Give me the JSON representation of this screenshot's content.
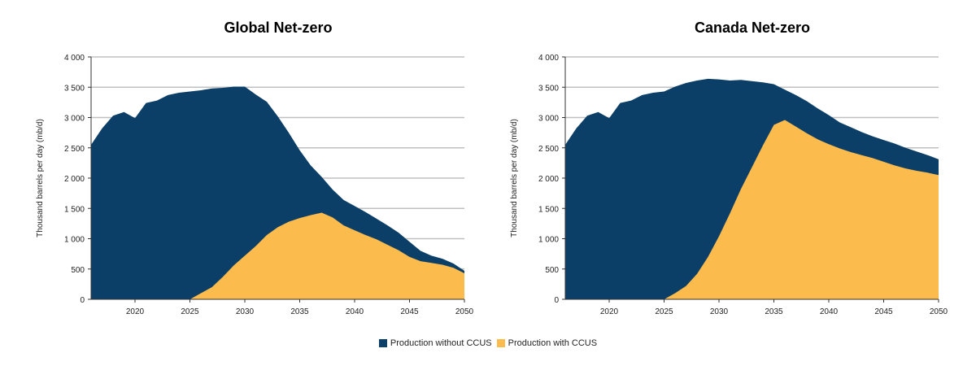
{
  "colors": {
    "without": "#0b3f68",
    "with": "#fcbb4d",
    "grid": "#c0c0c0",
    "axis": "#333333"
  },
  "legend": [
    {
      "label": "Production without CCUS",
      "color": "#0b3f68"
    },
    {
      "label": "Production with CCUS",
      "color": "#fcbb4d"
    }
  ],
  "chart_data": [
    {
      "type": "area",
      "title": "Global Net-zero",
      "ylabel": "Thousand barrels per day (mb/d)",
      "xlabel": "",
      "xlim": [
        2016,
        2050
      ],
      "ylim": [
        0,
        4000
      ],
      "x_ticks": [
        2020,
        2025,
        2030,
        2035,
        2040,
        2045,
        2050
      ],
      "x_tick_labels": [
        "2020",
        "2025",
        "2030",
        "2035",
        "2040",
        "2045",
        "2050"
      ],
      "y_ticks": [
        0,
        500,
        1000,
        1500,
        2000,
        2500,
        3000,
        3500,
        4000
      ],
      "y_tick_labels": [
        "0",
        "500",
        "1 000",
        "1 500",
        "2 000",
        "2 500",
        "3 000",
        "3 500",
        "4 000"
      ],
      "grid": true,
      "series": [
        {
          "name": "Production without CCUS",
          "x": [
            2016,
            2017,
            2018,
            2019,
            2020,
            2021,
            2022,
            2023,
            2024,
            2025,
            2026,
            2027,
            2028,
            2029,
            2030,
            2031,
            2032,
            2033,
            2034,
            2035,
            2036,
            2037,
            2038,
            2039,
            2040,
            2041,
            2042,
            2043,
            2044,
            2045,
            2046,
            2047,
            2048,
            2049,
            2050
          ],
          "values": [
            2550,
            2820,
            3030,
            3090,
            2990,
            3240,
            3280,
            3370,
            3410,
            3430,
            3450,
            3480,
            3490,
            3510,
            3510,
            3380,
            3260,
            3020,
            2750,
            2460,
            2210,
            2020,
            1810,
            1640,
            1540,
            1440,
            1330,
            1220,
            1100,
            950,
            800,
            720,
            670,
            590,
            470
          ]
        },
        {
          "name": "Production with CCUS",
          "x": [
            2016,
            2017,
            2018,
            2019,
            2020,
            2021,
            2022,
            2023,
            2024,
            2025,
            2026,
            2027,
            2028,
            2029,
            2030,
            2031,
            2032,
            2033,
            2034,
            2035,
            2036,
            2037,
            2038,
            2039,
            2040,
            2041,
            2042,
            2043,
            2044,
            2045,
            2046,
            2047,
            2048,
            2049,
            2050
          ],
          "values": [
            0,
            0,
            0,
            0,
            0,
            0,
            0,
            0,
            0,
            0,
            100,
            200,
            370,
            560,
            720,
            880,
            1060,
            1190,
            1280,
            1340,
            1390,
            1430,
            1350,
            1220,
            1140,
            1060,
            990,
            900,
            810,
            700,
            630,
            600,
            570,
            520,
            430
          ]
        }
      ]
    },
    {
      "type": "area",
      "title": "Canada Net-zero",
      "ylabel": "Thousand barrels per day (mb/d)",
      "xlabel": "",
      "xlim": [
        2016,
        2050
      ],
      "ylim": [
        0,
        4000
      ],
      "x_ticks": [
        2020,
        2025,
        2030,
        2035,
        2040,
        2045,
        2050
      ],
      "x_tick_labels": [
        "2020",
        "2025",
        "2030",
        "2035",
        "2040",
        "2045",
        "2050"
      ],
      "y_ticks": [
        0,
        500,
        1000,
        1500,
        2000,
        2500,
        3000,
        3500,
        4000
      ],
      "y_tick_labels": [
        "0",
        "500",
        "1 000",
        "1 500",
        "2 000",
        "2 500",
        "3 000",
        "3 500",
        "4 000"
      ],
      "grid": true,
      "series": [
        {
          "name": "Production without CCUS",
          "x": [
            2016,
            2017,
            2018,
            2019,
            2020,
            2021,
            2022,
            2023,
            2024,
            2025,
            2026,
            2027,
            2028,
            2029,
            2030,
            2031,
            2032,
            2033,
            2034,
            2035,
            2036,
            2037,
            2038,
            2039,
            2040,
            2041,
            2042,
            2043,
            2044,
            2045,
            2046,
            2047,
            2048,
            2049,
            2050
          ],
          "values": [
            2550,
            2820,
            3030,
            3090,
            2990,
            3240,
            3280,
            3370,
            3410,
            3430,
            3510,
            3570,
            3610,
            3640,
            3630,
            3610,
            3620,
            3600,
            3580,
            3550,
            3460,
            3370,
            3270,
            3150,
            3040,
            2920,
            2840,
            2760,
            2690,
            2630,
            2570,
            2500,
            2440,
            2380,
            2310
          ]
        },
        {
          "name": "Production with CCUS",
          "x": [
            2016,
            2017,
            2018,
            2019,
            2020,
            2021,
            2022,
            2023,
            2024,
            2025,
            2026,
            2027,
            2028,
            2029,
            2030,
            2031,
            2032,
            2033,
            2034,
            2035,
            2036,
            2037,
            2038,
            2039,
            2040,
            2041,
            2042,
            2043,
            2044,
            2045,
            2046,
            2047,
            2048,
            2049,
            2050
          ],
          "values": [
            0,
            0,
            0,
            0,
            0,
            0,
            0,
            0,
            0,
            0,
            100,
            220,
            420,
            700,
            1040,
            1420,
            1820,
            2180,
            2540,
            2880,
            2960,
            2850,
            2740,
            2640,
            2560,
            2490,
            2430,
            2380,
            2330,
            2270,
            2210,
            2160,
            2120,
            2090,
            2050
          ]
        }
      ]
    }
  ]
}
